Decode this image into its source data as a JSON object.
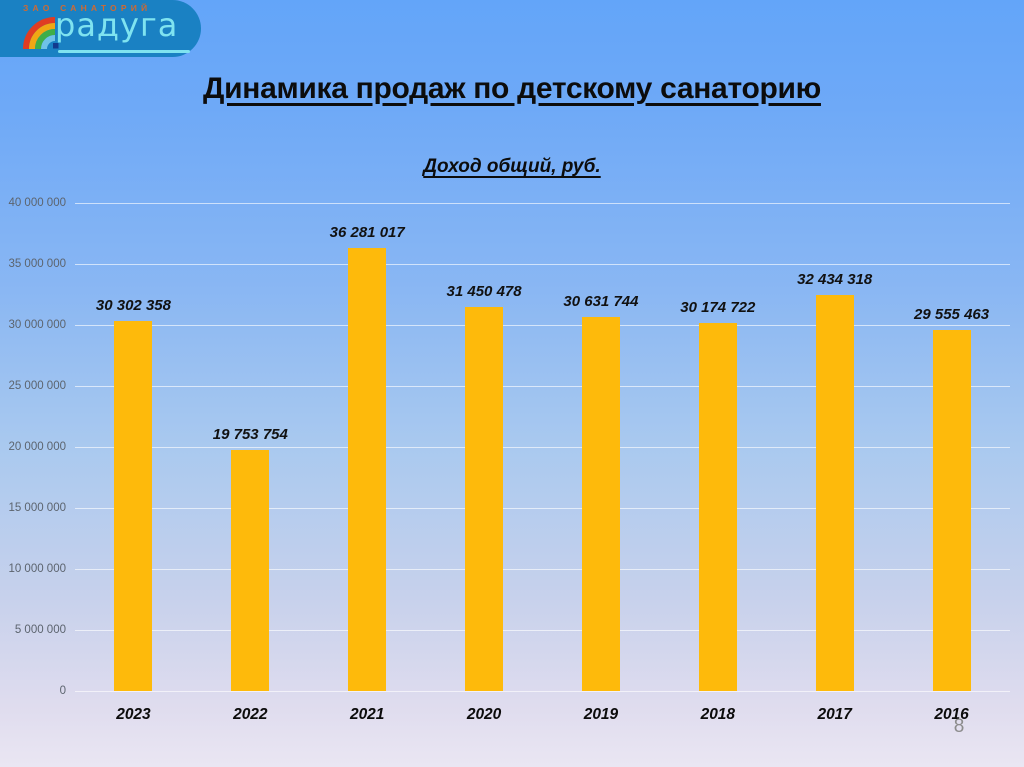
{
  "slide": {
    "title": "Динамика продаж по детскому санаторию",
    "page_number": "8"
  },
  "logo": {
    "top_text": "ЗАО САНАТОРИЙ",
    "brand_text": "радуга",
    "icon": "rainbow-icon",
    "colors": {
      "background": "#1a81c3",
      "top_text": "#cf6a33",
      "brand_text": "#7fe3f0"
    }
  },
  "chart_data": {
    "type": "bar",
    "title": "Доход общий, руб.",
    "categories": [
      "2023",
      "2022",
      "2021",
      "2020",
      "2019",
      "2018",
      "2017",
      "2016"
    ],
    "values": [
      30302358,
      19753754,
      36281017,
      31450478,
      30631744,
      30174722,
      32434318,
      29555463
    ],
    "value_labels": [
      "30 302 358",
      "19 753 754",
      "36 281 017",
      "31 450 478",
      "30 631 744",
      "30 174 722",
      "32 434 318",
      "29 555 463"
    ],
    "xlabel": "",
    "ylabel": "",
    "ylim": [
      0,
      40000000
    ],
    "yticks": [
      {
        "value": 0,
        "label": "0"
      },
      {
        "value": 5000000,
        "label": "5 000 000"
      },
      {
        "value": 10000000,
        "label": "10 000 000"
      },
      {
        "value": 15000000,
        "label": "15 000 000"
      },
      {
        "value": 20000000,
        "label": "20 000 000"
      },
      {
        "value": 25000000,
        "label": "25 000 000"
      },
      {
        "value": 30000000,
        "label": "30 000 000"
      },
      {
        "value": 35000000,
        "label": "35 000 000"
      },
      {
        "value": 40000000,
        "label": "40 000 000"
      }
    ],
    "grid": true,
    "legend": "none",
    "bar_color": "#feba0b",
    "tick_label_color": "#5c646e",
    "value_label_color": "#111111"
  }
}
